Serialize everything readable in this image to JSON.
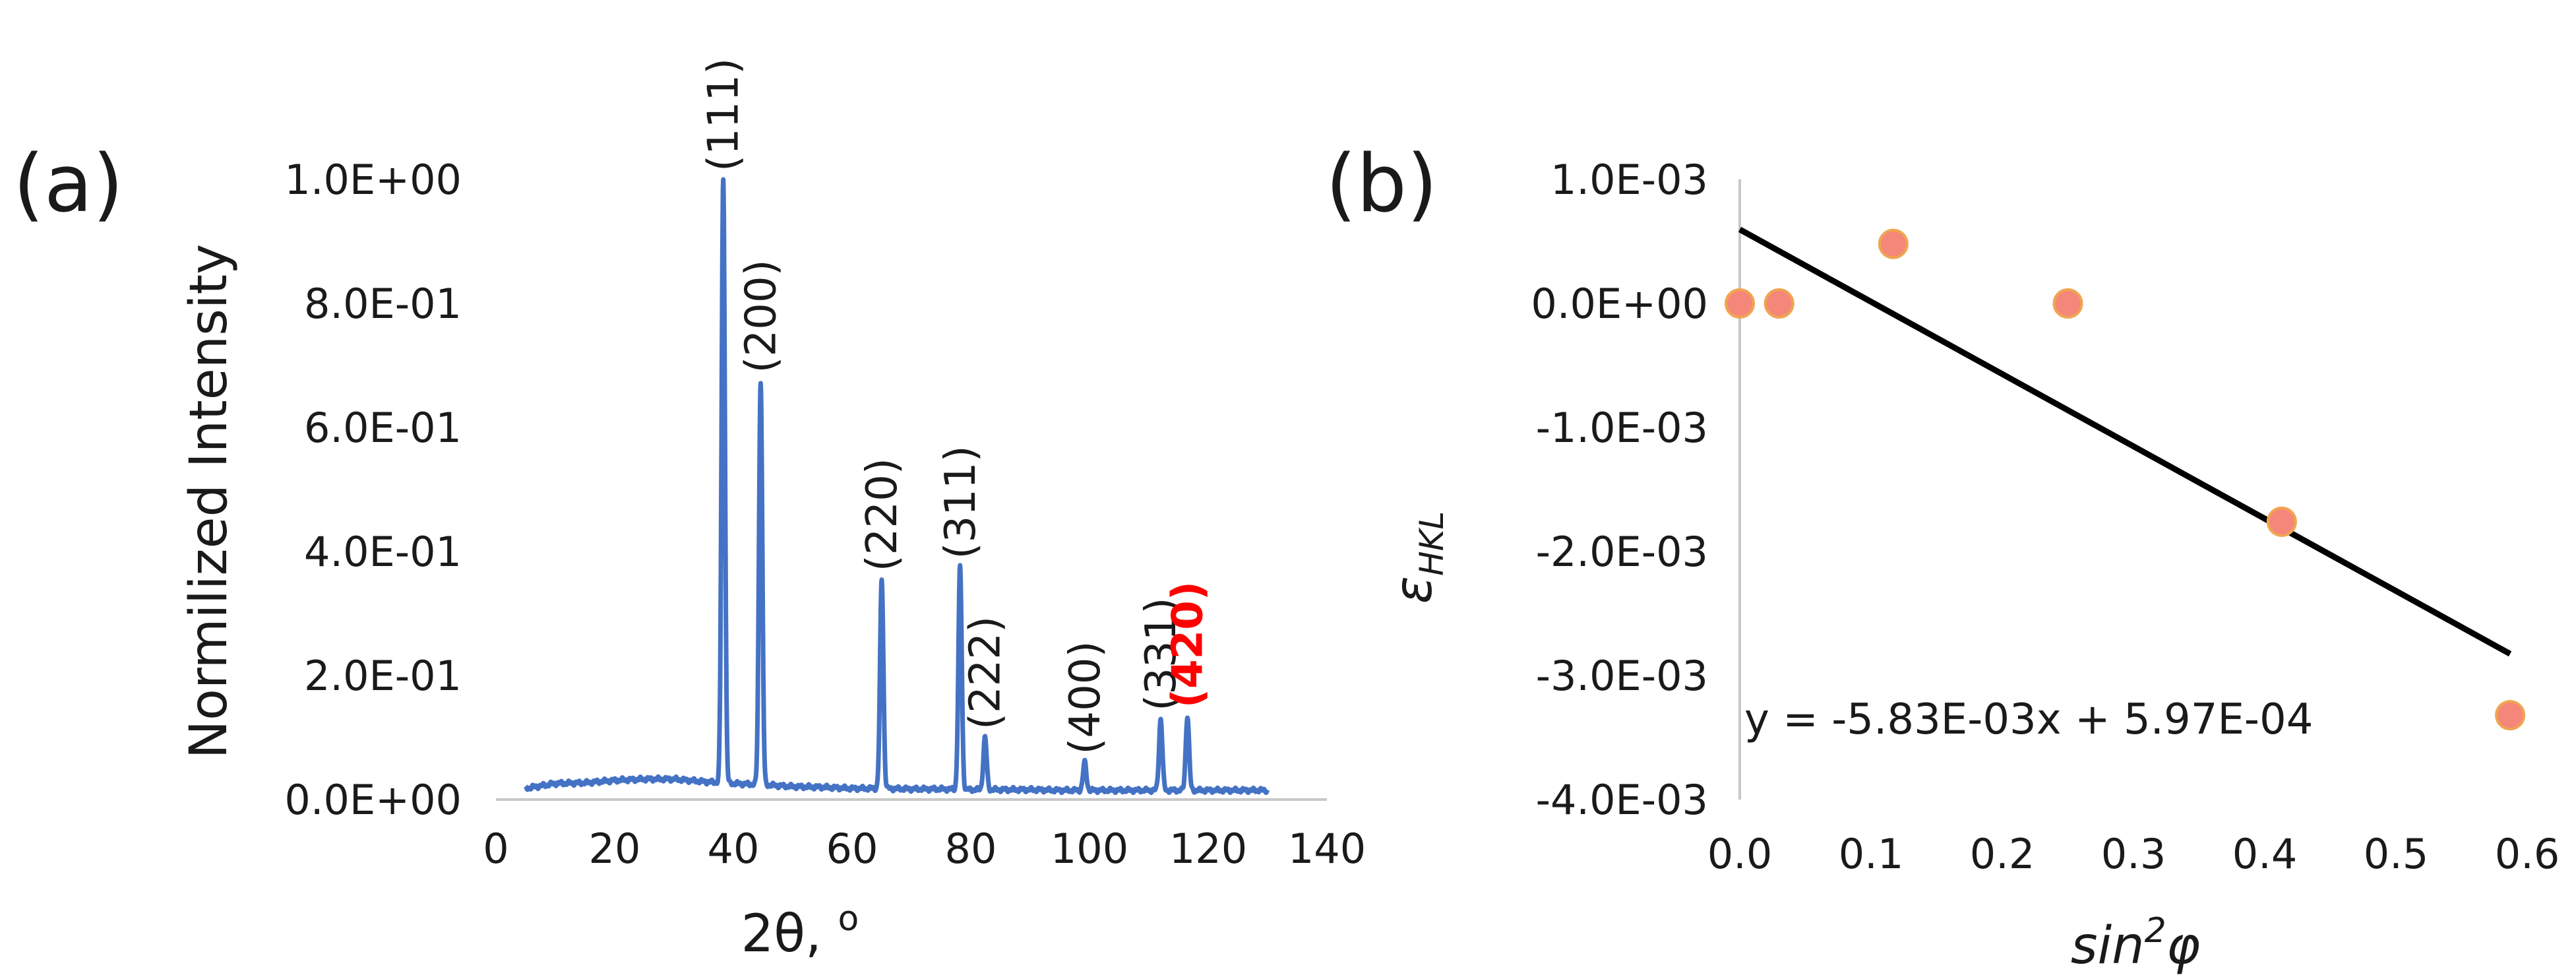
{
  "chart_data": [
    {
      "type": "line",
      "panel": "(a)",
      "xlabel": "2θ, ",
      "xlabel_sup": "o",
      "ylabel": "Normilized Intensity",
      "xlim": [
        0,
        140
      ],
      "ylim": [
        0,
        1
      ],
      "x_ticks": [
        "0",
        "20",
        "40",
        "60",
        "80",
        "100",
        "120",
        "140"
      ],
      "y_ticks": [
        "0.0E+00",
        "2.0E-01",
        "4.0E-01",
        "6.0E-01",
        "8.0E-01",
        "1.0E+00"
      ],
      "color": "#4472c4",
      "highlight_color": "#ff0000",
      "background": {
        "x": [
          5,
          10,
          15,
          20,
          25,
          30,
          35,
          40,
          45,
          50,
          55,
          60,
          65,
          70,
          75,
          80,
          85,
          90,
          95,
          100,
          105,
          110,
          115,
          120,
          125,
          130
        ],
        "y": [
          0.018,
          0.026,
          0.027,
          0.031,
          0.033,
          0.033,
          0.029,
          0.026,
          0.024,
          0.021,
          0.02,
          0.018,
          0.018,
          0.017,
          0.017,
          0.016,
          0.016,
          0.016,
          0.015,
          0.015,
          0.015,
          0.015,
          0.015,
          0.015,
          0.015,
          0.015
        ]
      },
      "peaks": [
        {
          "label": "(111)",
          "x": 38.3,
          "y": 1.0,
          "highlight": false
        },
        {
          "label": "(200)",
          "x": 44.6,
          "y": 0.675,
          "highlight": false
        },
        {
          "label": "(220)",
          "x": 65.0,
          "y": 0.355,
          "highlight": false
        },
        {
          "label": "(311)",
          "x": 78.2,
          "y": 0.375,
          "highlight": false
        },
        {
          "label": "(222)",
          "x": 82.4,
          "y": 0.1,
          "highlight": false
        },
        {
          "label": "(400)",
          "x": 99.2,
          "y": 0.06,
          "highlight": false
        },
        {
          "label": "(331)",
          "x": 112.0,
          "y": 0.13,
          "highlight": false
        },
        {
          "label": "(420)",
          "x": 116.5,
          "y": 0.135,
          "highlight": true
        }
      ]
    },
    {
      "type": "scatter",
      "panel": "(b)",
      "xlabel": "sin",
      "xlabel_sup": "2",
      "xlabel_tail": "φ",
      "ylabel": "ε",
      "ylabel_sub": "HKL",
      "xlim": [
        0,
        0.6
      ],
      "ylim": [
        -0.004,
        0.001
      ],
      "x_ticks": [
        "0.0",
        "0.1",
        "0.2",
        "0.3",
        "0.4",
        "0.5",
        "0.6"
      ],
      "y_ticks": [
        "1.0E-03",
        "0.0E+00",
        "-1.0E-03",
        "-2.0E-03",
        "-3.0E-03",
        "-4.0E-03"
      ],
      "marker_fill": "#f4877a",
      "marker_stroke": "#f0a550",
      "line_color": "#000000",
      "points": [
        {
          "x": 0.0,
          "y": 0.0
        },
        {
          "x": 0.03,
          "y": 0.0
        },
        {
          "x": 0.117,
          "y": 0.00048
        },
        {
          "x": 0.25,
          "y": 0.0
        },
        {
          "x": 0.413,
          "y": -0.00176
        },
        {
          "x": 0.587,
          "y": -0.00332
        }
      ],
      "trendline": {
        "slope": -0.00583,
        "intercept": 0.000597,
        "x_range": [
          0,
          0.587
        ]
      },
      "equation": "y = -5.83E-03x + 5.97E-04"
    }
  ]
}
